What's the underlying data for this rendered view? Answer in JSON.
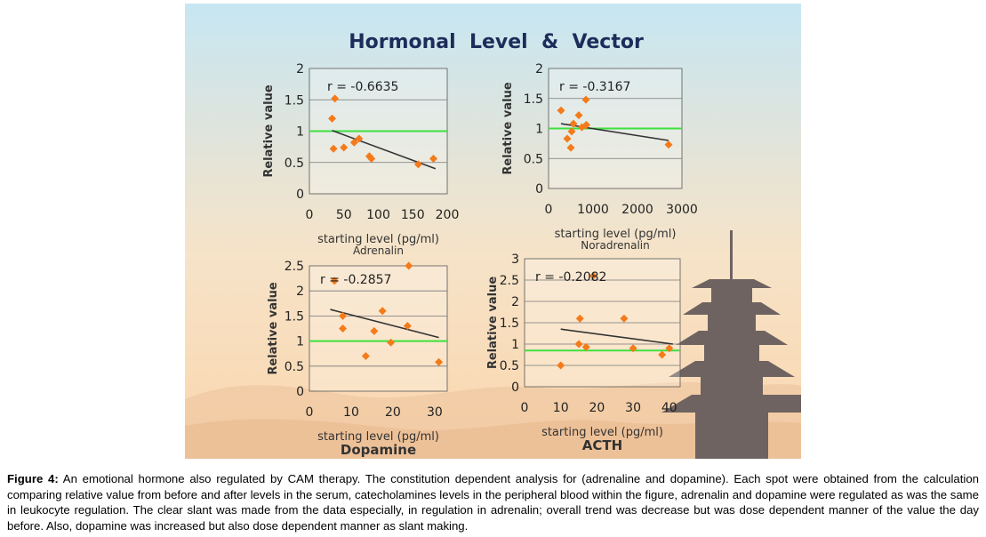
{
  "figure": {
    "title": "Hormonal  Level  &  Vector",
    "colors": {
      "sky_top": "#c7e6f2",
      "sky_bottom": "#fbd9b4",
      "point": "#f47a1a",
      "baseline": "#3ee03e",
      "trend": "#333333",
      "pagoda": "#6e6360"
    }
  },
  "caption": {
    "label": "Figure 4:",
    "text": " An emotional hormone also regulated by CAM therapy. The constitution dependent analysis for (adrenaline and dopamine). Each spot were obtained from the calculation comparing relative value from before and after levels in the serum, catecholamines levels in the peripheral blood within the figure, adrenalin and dopamine were regulated as was the same in leukocyte regulation. The clear slant was made from the data especially, in regulation in adrenalin; overall trend was decrease but was dose dependent manner of the value the day before. Also, dopamine was increased but also dose dependent manner as slant making."
  },
  "chart_data": [
    {
      "type": "scatter",
      "subtitle": "Adrenalin",
      "xlabel": "starting level (pg/ml)",
      "ylabel": "Relative value",
      "annotation": "r = -0.6635",
      "xlim": [
        0,
        200
      ],
      "ylim": [
        0,
        2
      ],
      "xticks": [
        0,
        50,
        100,
        150,
        200
      ],
      "yticks": [
        0,
        0.5,
        1,
        1.5,
        2
      ],
      "ytick_labels": [
        "0",
        "0.5",
        "1",
        "1.5",
        "2"
      ],
      "grid": true,
      "baseline_y": 1.0,
      "points": [
        [
          33,
          1.2
        ],
        [
          35,
          0.72
        ],
        [
          37,
          1.52
        ],
        [
          50,
          0.74
        ],
        [
          65,
          0.82
        ],
        [
          72,
          0.88
        ],
        [
          87,
          0.6
        ],
        [
          90,
          0.56
        ],
        [
          158,
          0.47
        ],
        [
          180,
          0.56
        ]
      ],
      "trend": [
        [
          33,
          1.01
        ],
        [
          183,
          0.4
        ]
      ]
    },
    {
      "type": "scatter",
      "subtitle": "Noradrenalin",
      "xlabel": "starting level (pg/ml)",
      "ylabel": "Relative value",
      "annotation": "r = -0.3167",
      "xlim": [
        0,
        3000
      ],
      "ylim": [
        0,
        2
      ],
      "xticks": [
        0,
        1000,
        2000,
        3000
      ],
      "yticks": [
        0,
        0.5,
        1,
        1.5,
        2
      ],
      "ytick_labels": [
        "0",
        "0.5",
        "1",
        "1.5",
        "2"
      ],
      "grid": true,
      "baseline_y": 1.0,
      "points": [
        [
          280,
          1.3
        ],
        [
          420,
          0.83
        ],
        [
          500,
          0.68
        ],
        [
          520,
          0.95
        ],
        [
          560,
          1.08
        ],
        [
          680,
          1.22
        ],
        [
          750,
          1.02
        ],
        [
          840,
          1.48
        ],
        [
          850,
          1.06
        ],
        [
          2700,
          0.73
        ]
      ],
      "trend": [
        [
          280,
          1.08
        ],
        [
          2700,
          0.8
        ]
      ]
    },
    {
      "type": "scatter",
      "subtitle": "Dopamine",
      "xlabel": "starting level (pg/ml)",
      "ylabel": "Relative value",
      "annotation": "r = -0.2857",
      "xlim": [
        0,
        33
      ],
      "ylim": [
        0,
        2.5
      ],
      "xticks": [
        0,
        10,
        20,
        30
      ],
      "yticks": [
        0,
        0.5,
        1,
        1.5,
        2,
        2.5
      ],
      "ytick_labels": [
        "0",
        "0.5",
        "1",
        "1.5",
        "2",
        "2.5"
      ],
      "grid": true,
      "baseline_y": 1.0,
      "points": [
        [
          6,
          2.2
        ],
        [
          8,
          1.5
        ],
        [
          8,
          1.25
        ],
        [
          13.5,
          0.7
        ],
        [
          15.5,
          1.2
        ],
        [
          17.5,
          1.6
        ],
        [
          19.5,
          0.97
        ],
        [
          23.5,
          1.3
        ],
        [
          23.8,
          2.5
        ],
        [
          31,
          0.58
        ]
      ],
      "trend": [
        [
          5,
          1.63
        ],
        [
          31,
          1.07
        ]
      ]
    },
    {
      "type": "scatter",
      "subtitle": "ACTH",
      "xlabel": "starting level (pg/ml)",
      "ylabel": "Relative value",
      "annotation": "r = -0.2082",
      "xlim": [
        0,
        43
      ],
      "ylim": [
        0,
        3
      ],
      "xticks": [
        0,
        10,
        20,
        30,
        40
      ],
      "yticks": [
        0,
        0.5,
        1,
        1.5,
        2,
        2.5,
        3
      ],
      "ytick_labels": [
        "0",
        "0.5",
        "1",
        "1.5",
        "2",
        "2.5",
        "3"
      ],
      "grid": true,
      "baseline_y": 0.85,
      "points": [
        [
          10,
          0.5
        ],
        [
          15,
          1.0
        ],
        [
          15.3,
          1.6
        ],
        [
          17,
          0.93
        ],
        [
          19,
          2.6
        ],
        [
          27.5,
          1.6
        ],
        [
          30,
          0.9
        ],
        [
          38,
          0.75
        ],
        [
          40,
          0.9
        ]
      ],
      "trend": [
        [
          10,
          1.35
        ],
        [
          41,
          1.0
        ]
      ]
    }
  ]
}
